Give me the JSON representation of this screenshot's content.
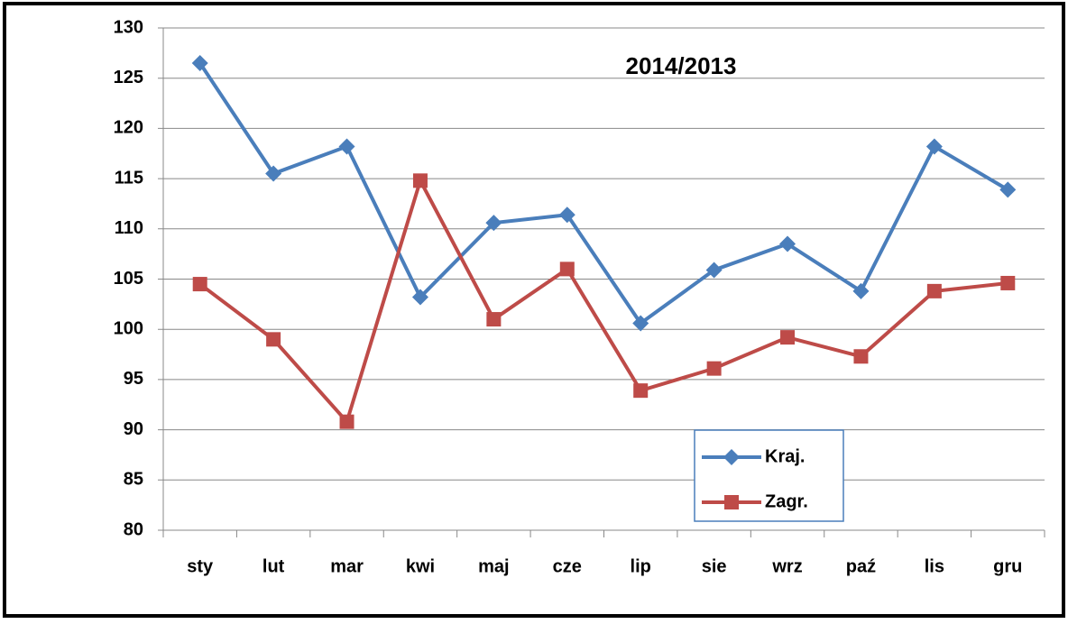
{
  "chart_data": {
    "type": "line",
    "title": "2014/2013",
    "categories": [
      "sty",
      "lut",
      "mar",
      "kwi",
      "maj",
      "cze",
      "lip",
      "sie",
      "wrz",
      "paź",
      "lis",
      "gru"
    ],
    "series": [
      {
        "name": "Kraj.",
        "color": "#4a7ebb",
        "marker": "diamond",
        "values": [
          126.5,
          115.5,
          118.2,
          103.2,
          110.6,
          111.4,
          100.6,
          105.9,
          108.5,
          103.8,
          118.2,
          113.9
        ]
      },
      {
        "name": "Zagr.",
        "color": "#be4b48",
        "marker": "square",
        "values": [
          104.5,
          99.0,
          90.8,
          114.8,
          101.0,
          106.0,
          93.9,
          96.1,
          99.2,
          97.3,
          103.8,
          104.6
        ]
      }
    ],
    "ylim": [
      80,
      130
    ],
    "yticks": [
      80,
      85,
      90,
      95,
      100,
      105,
      110,
      115,
      120,
      125,
      130
    ],
    "grid": true,
    "legend": "lower center"
  }
}
